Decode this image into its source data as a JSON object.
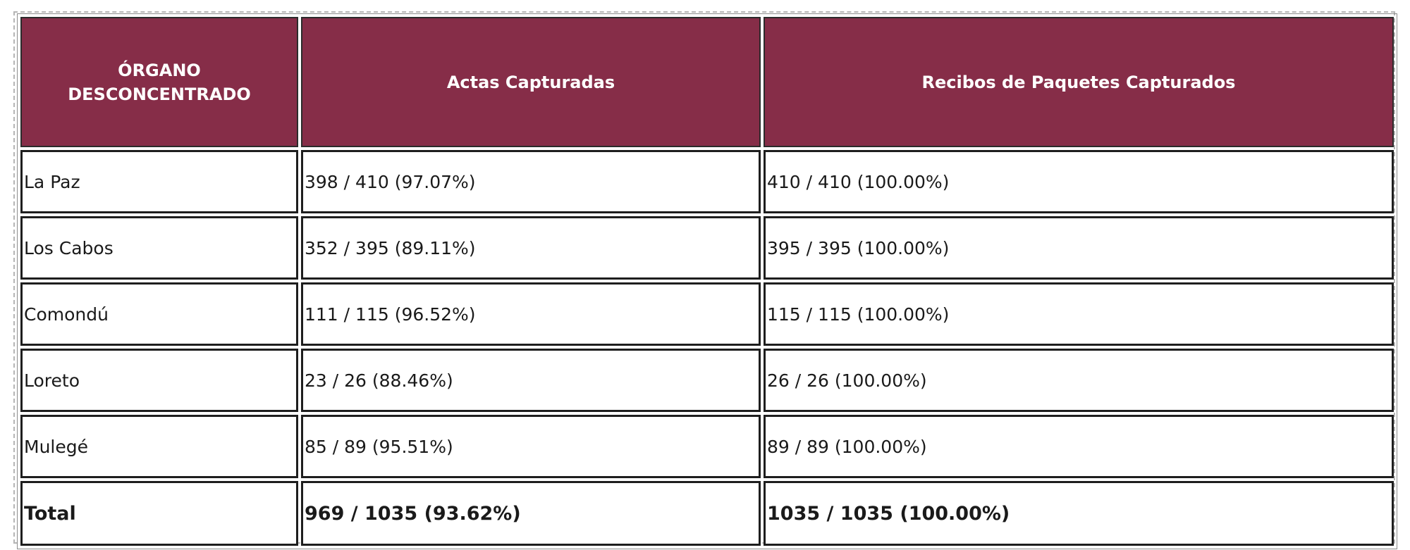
{
  "table": {
    "headers": [
      "ÓRGANO\nDESCONCENTRADO",
      "Actas Capturadas",
      "Recibos de Paquetes Capturados"
    ],
    "rows": [
      [
        "La Paz",
        "398 / 410 (97.07%)",
        "410 / 410 (100.00%)"
      ],
      [
        "Los Cabos",
        "352 / 395 (89.11%)",
        "395 / 395 (100.00%)"
      ],
      [
        "Comondú",
        "111 / 115 (96.52%)",
        "115 / 115 (100.00%)"
      ],
      [
        "Loreto",
        "23 / 26 (88.46%)",
        "26 / 26 (100.00%)"
      ],
      [
        "Mulegé",
        "85 / 89 (95.51%)",
        "89 / 89 (100.00%)"
      ]
    ],
    "total": [
      "Total",
      "969 / 1035 (93.62%)",
      "1035 / 1035 (100.00%)"
    ]
  },
  "colors": {
    "header_background": "#862d48",
    "header_text": "#ffffff",
    "cell_border": "#1e1e1e"
  }
}
